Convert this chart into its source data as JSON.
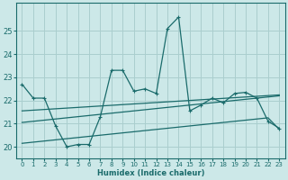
{
  "x_range": [
    -0.5,
    23.5
  ],
  "y_range": [
    19.5,
    26.2
  ],
  "yticks": [
    20,
    21,
    22,
    23,
    24,
    25
  ],
  "xticks": [
    0,
    1,
    2,
    3,
    4,
    5,
    6,
    7,
    8,
    9,
    10,
    11,
    12,
    13,
    14,
    15,
    16,
    17,
    18,
    19,
    20,
    21,
    22,
    23
  ],
  "xlabel": "Humidex (Indice chaleur)",
  "bg_color": "#cce8e8",
  "grid_color": "#aacece",
  "line_color": "#1a6b6b",
  "series1_x": [
    0,
    1,
    2,
    3,
    4,
    5,
    6,
    7,
    8,
    9,
    10,
    11,
    12,
    13,
    14,
    15,
    16,
    17,
    18,
    19,
    20,
    21,
    22,
    23
  ],
  "series1_y": [
    22.7,
    22.1,
    22.1,
    20.9,
    20.0,
    20.1,
    20.1,
    21.3,
    23.3,
    23.3,
    22.4,
    22.5,
    22.3,
    25.1,
    25.6,
    21.55,
    21.8,
    22.1,
    21.9,
    22.3,
    22.35,
    22.1,
    21.1,
    20.8
  ],
  "series2_x": [
    0,
    1,
    2,
    3,
    4,
    5,
    6,
    7,
    8,
    9,
    10,
    11,
    12,
    13,
    14,
    15,
    16,
    17,
    18,
    19,
    20,
    21,
    22,
    23
  ],
  "series2_y": [
    21.55,
    21.58,
    21.61,
    21.64,
    21.67,
    21.7,
    21.73,
    21.76,
    21.79,
    21.82,
    21.85,
    21.88,
    21.91,
    21.94,
    21.97,
    22.0,
    22.03,
    22.06,
    22.09,
    22.12,
    22.15,
    22.18,
    22.21,
    22.24
  ],
  "series3_x": [
    0,
    1,
    2,
    3,
    4,
    5,
    6,
    7,
    8,
    9,
    10,
    11,
    12,
    13,
    14,
    15,
    16,
    17,
    18,
    19,
    20,
    21,
    22,
    23
  ],
  "series3_y": [
    21.05,
    21.1,
    21.15,
    21.2,
    21.25,
    21.3,
    21.35,
    21.4,
    21.45,
    21.5,
    21.55,
    21.6,
    21.65,
    21.7,
    21.75,
    21.8,
    21.85,
    21.9,
    21.95,
    22.0,
    22.05,
    22.1,
    22.15,
    22.2
  ],
  "series4_x": [
    0,
    1,
    2,
    3,
    4,
    5,
    6,
    7,
    8,
    9,
    10,
    11,
    12,
    13,
    14,
    15,
    16,
    17,
    18,
    19,
    20,
    21,
    22,
    23
  ],
  "series4_y": [
    20.15,
    20.2,
    20.25,
    20.3,
    20.35,
    20.4,
    20.45,
    20.5,
    20.55,
    20.6,
    20.65,
    20.7,
    20.75,
    20.8,
    20.85,
    20.9,
    20.95,
    21.0,
    21.05,
    21.1,
    21.15,
    21.2,
    21.25,
    20.75
  ]
}
